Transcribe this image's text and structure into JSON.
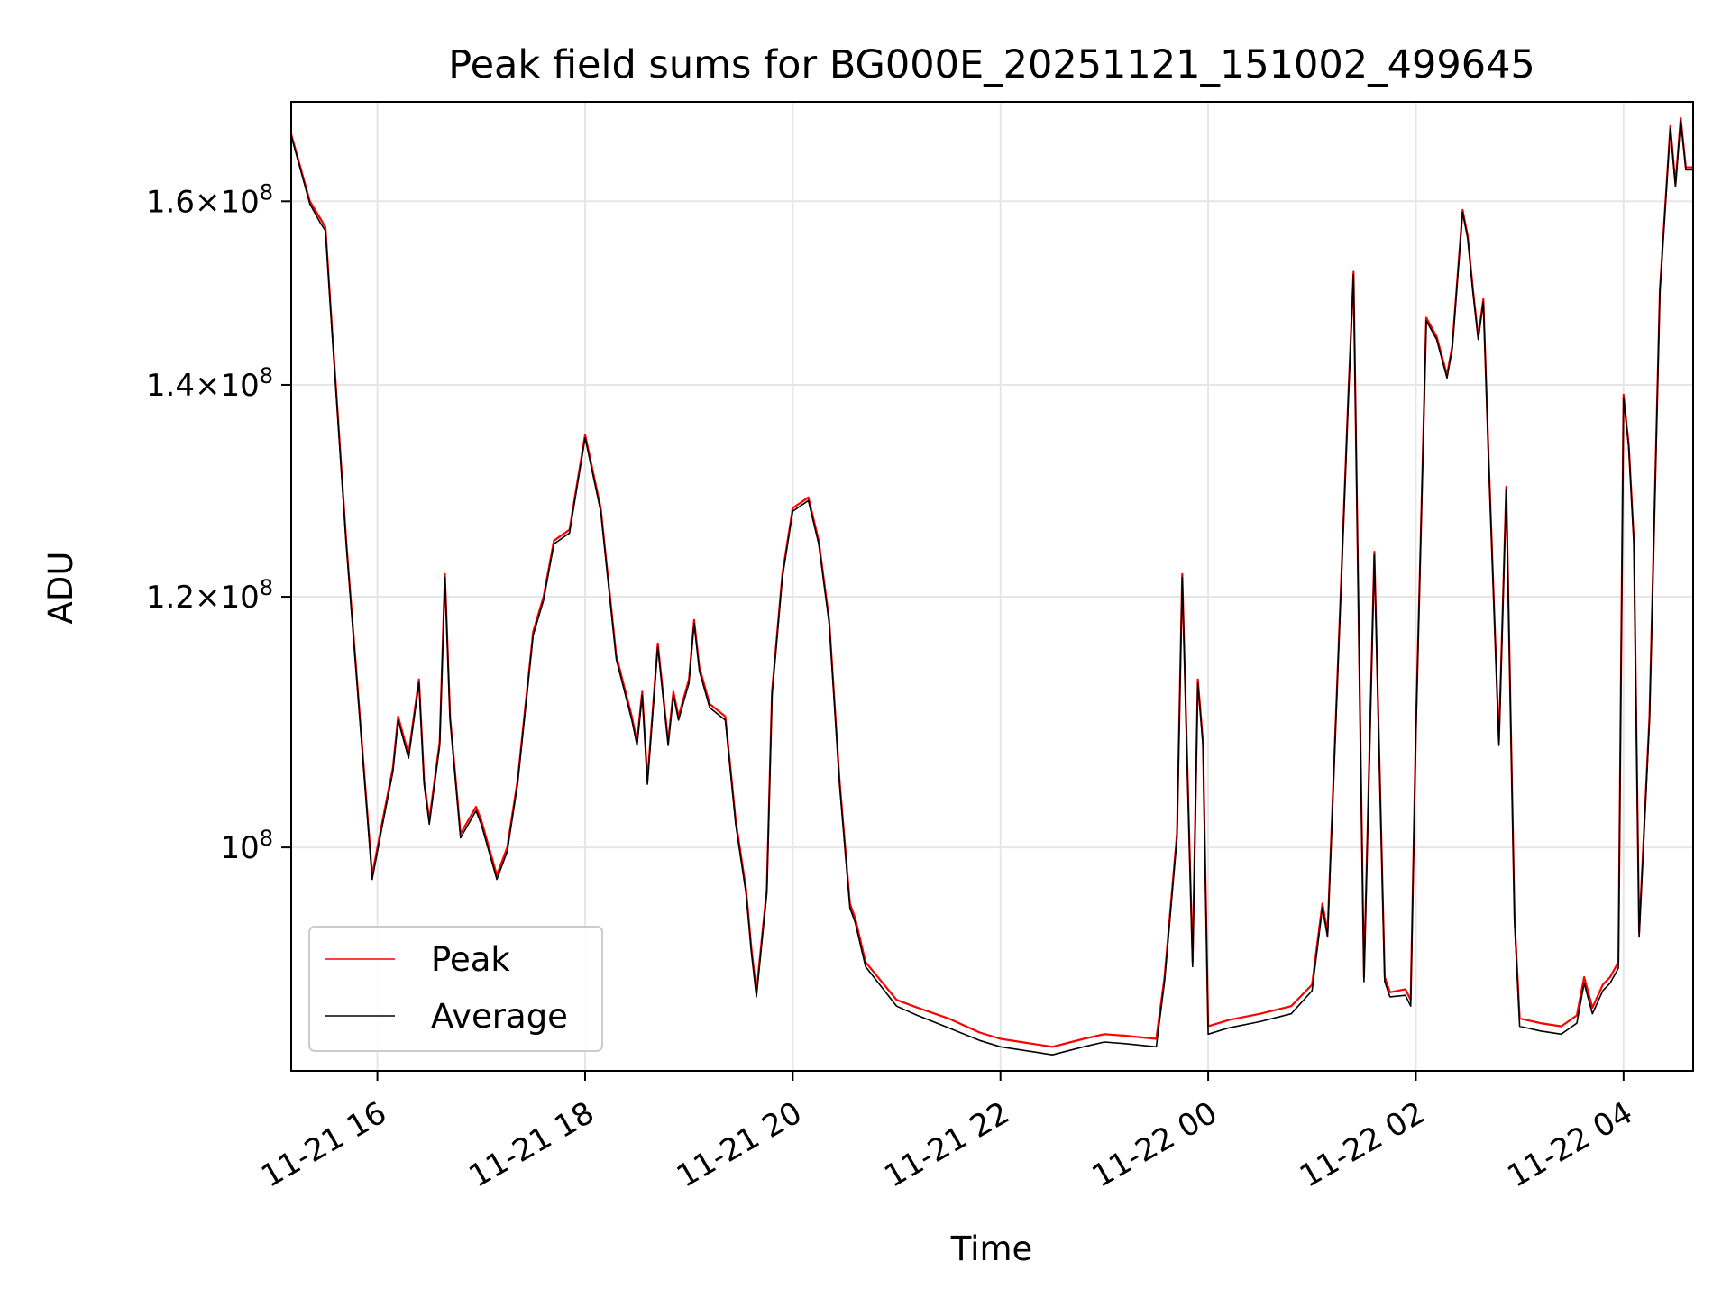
{
  "chart_data": {
    "type": "line",
    "title": "Peak field sums for BG000E_20251121_151002_499645",
    "xlabel": "Time",
    "ylabel": "ADU",
    "yscale": "log",
    "xlim_hours": [
      15.17,
      28.67
    ],
    "ylim": [
      85000000,
      172000000
    ],
    "grid": true,
    "x_ticks": [
      {
        "hour": 16,
        "label": "11-21 16"
      },
      {
        "hour": 18,
        "label": "11-21 18"
      },
      {
        "hour": 20,
        "label": "11-21 20"
      },
      {
        "hour": 22,
        "label": "11-21 22"
      },
      {
        "hour": 24,
        "label": "11-22 00"
      },
      {
        "hour": 26,
        "label": "11-22 02"
      },
      {
        "hour": 28,
        "label": "11-22 04"
      }
    ],
    "y_ticks": [
      {
        "value": 100000000,
        "mantissa": "",
        "exp": "8"
      },
      {
        "value": 120000000,
        "mantissa": "1.2",
        "exp": "8"
      },
      {
        "value": 140000000,
        "mantissa": "1.4",
        "exp": "8"
      },
      {
        "value": 160000000,
        "mantissa": "1.6",
        "exp": "8"
      }
    ],
    "x_hours": [
      15.17,
      15.35,
      15.45,
      15.5,
      15.55,
      15.7,
      15.85,
      15.95,
      16.05,
      16.15,
      16.2,
      16.3,
      16.4,
      16.45,
      16.5,
      16.6,
      16.65,
      16.7,
      16.8,
      16.95,
      17.0,
      17.15,
      17.25,
      17.35,
      17.5,
      17.6,
      17.7,
      17.85,
      18.0,
      18.15,
      18.3,
      18.45,
      18.5,
      18.55,
      18.6,
      18.7,
      18.8,
      18.85,
      18.9,
      19.0,
      19.05,
      19.1,
      19.2,
      19.35,
      19.45,
      19.55,
      19.6,
      19.65,
      19.75,
      19.8,
      19.9,
      20.0,
      20.15,
      20.25,
      20.35,
      20.45,
      20.55,
      20.6,
      20.7,
      21.0,
      21.2,
      21.5,
      21.8,
      22.0,
      22.3,
      22.5,
      22.8,
      23.0,
      23.2,
      23.5,
      23.58,
      23.7,
      23.75,
      23.85,
      23.9,
      23.95,
      24.0,
      24.2,
      24.5,
      24.8,
      25.0,
      25.1,
      25.15,
      25.35,
      25.4,
      25.5,
      25.6,
      25.7,
      25.75,
      25.9,
      25.95,
      26.0,
      26.1,
      26.2,
      26.3,
      26.35,
      26.45,
      26.5,
      26.55,
      26.6,
      26.65,
      26.7,
      26.8,
      26.87,
      26.95,
      27.0,
      27.2,
      27.4,
      27.55,
      27.62,
      27.7,
      27.8,
      27.87,
      27.95,
      28.0,
      28.05,
      28.1,
      28.15,
      28.25,
      28.35,
      28.45,
      28.5,
      28.55,
      28.6,
      28.67
    ],
    "series": [
      {
        "name": "Peak",
        "color": "#ff0000",
        "values": [
          168000000,
          160000000,
          158000000,
          157000000,
          148000000,
          125000000,
          108000000,
          98000000,
          102000000,
          106000000,
          110000000,
          107000000,
          113000000,
          105000000,
          102000000,
          108000000,
          122000000,
          110000000,
          101000000,
          103000000,
          102000000,
          98000000,
          100000000,
          105000000,
          117000000,
          120000000,
          125000000,
          126000000,
          135000000,
          128000000,
          115000000,
          110000000,
          108000000,
          112000000,
          105000000,
          116000000,
          108000000,
          112000000,
          110000000,
          113000000,
          118000000,
          114000000,
          111000000,
          110000000,
          102000000,
          97000000,
          93000000,
          90000000,
          97000000,
          112000000,
          122000000,
          128000000,
          129000000,
          125000000,
          118000000,
          105000000,
          96000000,
          95000000,
          92000000,
          89500000,
          89000000,
          88300000,
          87400000,
          87000000,
          86700000,
          86500000,
          87000000,
          87300000,
          87200000,
          87000000,
          91000000,
          101000000,
          122000000,
          92000000,
          113000000,
          108000000,
          87800000,
          88200000,
          88600000,
          89100000,
          90500000,
          96000000,
          94000000,
          139000000,
          152000000,
          91000000,
          124000000,
          91000000,
          90000000,
          90200000,
          89500000,
          109000000,
          147000000,
          145000000,
          141000000,
          144000000,
          159000000,
          156000000,
          150000000,
          145000000,
          149000000,
          133000000,
          108000000,
          130000000,
          95000000,
          88300000,
          88000000,
          87800000,
          88500000,
          91000000,
          89000000,
          90500000,
          91000000,
          92000000,
          139000000,
          134000000,
          125000000,
          94000000,
          110000000,
          150000000,
          169000000,
          162000000,
          170000000,
          164000000,
          164000000
        ]
      },
      {
        "name": "Average",
        "color": "#000000",
        "values": [
          167800000,
          159700000,
          157500000,
          156600000,
          147600000,
          124700000,
          107700000,
          97700000,
          101700000,
          105700000,
          109700000,
          106700000,
          112700000,
          104700000,
          101700000,
          107700000,
          121700000,
          109700000,
          100700000,
          102700000,
          101700000,
          97700000,
          99700000,
          104700000,
          116700000,
          119700000,
          124700000,
          125700000,
          134700000,
          127700000,
          114700000,
          109700000,
          107700000,
          111700000,
          104700000,
          115700000,
          107700000,
          111700000,
          109700000,
          112700000,
          117700000,
          113700000,
          110700000,
          109700000,
          101700000,
          96700000,
          92700000,
          89700000,
          96700000,
          111700000,
          121700000,
          127700000,
          128700000,
          124700000,
          117700000,
          104700000,
          95700000,
          94700000,
          91700000,
          89100000,
          88500000,
          87700000,
          86900000,
          86500000,
          86200000,
          86000000,
          86500000,
          86800000,
          86700000,
          86500000,
          90700000,
          100700000,
          121700000,
          91700000,
          112700000,
          107700000,
          87300000,
          87700000,
          88100000,
          88600000,
          90100000,
          95700000,
          93700000,
          138700000,
          151700000,
          90700000,
          123700000,
          90700000,
          89700000,
          89800000,
          89100000,
          108700000,
          146700000,
          144700000,
          140700000,
          143700000,
          158700000,
          155700000,
          149700000,
          144700000,
          148700000,
          132700000,
          107700000,
          129700000,
          94700000,
          87800000,
          87500000,
          87300000,
          88000000,
          90600000,
          88600000,
          90100000,
          90600000,
          91600000,
          138700000,
          133700000,
          124700000,
          93700000,
          109700000,
          149700000,
          168700000,
          161700000,
          169700000,
          163700000,
          163700000
        ]
      }
    ],
    "legend": {
      "position": "lower-left",
      "entries": [
        "Peak",
        "Average"
      ]
    }
  }
}
